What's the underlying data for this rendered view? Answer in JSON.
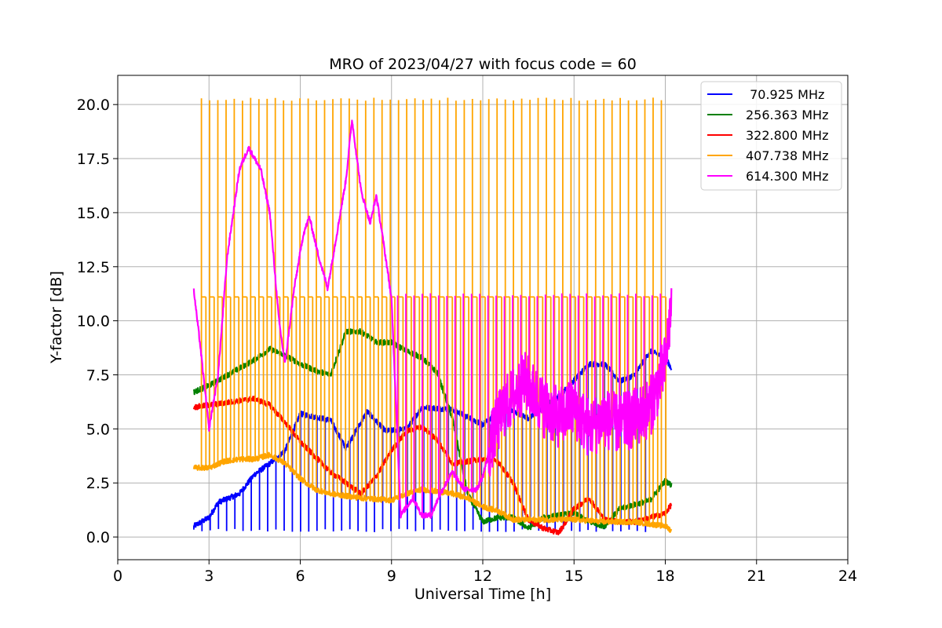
{
  "chart_data": {
    "type": "line",
    "title": "MRO of 2023/04/27 with focus code = 60",
    "xlabel": "Universal Time [h]",
    "ylabel": "Y-factor [dB]",
    "xlim": [
      0,
      24
    ],
    "ylim": [
      -1.05,
      21.35
    ],
    "xticks": [
      0,
      3,
      6,
      9,
      12,
      15,
      18,
      21,
      24
    ],
    "xtick_labels": [
      "0",
      "3",
      "6",
      "9",
      "12",
      "15",
      "18",
      "21",
      "24"
    ],
    "yticks": [
      0,
      2.5,
      5,
      7.5,
      10,
      12.5,
      15,
      17.5,
      20
    ],
    "ytick_labels": [
      "0.0",
      "2.5",
      "5.0",
      "7.5",
      "10.0",
      "12.5",
      "15.0",
      "17.5",
      "20.0"
    ],
    "grid": true,
    "legend_position": "top-right",
    "spike_interval_h": 0.27,
    "series": [
      {
        "name": " 70.925 MHz",
        "color": "#0000ff",
        "base": [
          [
            2.5,
            0.5
          ],
          [
            3,
            0.9
          ],
          [
            3.3,
            1.6
          ],
          [
            4,
            2.0
          ],
          [
            4.5,
            2.9
          ],
          [
            5,
            3.4
          ],
          [
            5.5,
            4.0
          ],
          [
            6,
            5.7
          ],
          [
            7,
            5.4
          ],
          [
            7.5,
            4.1
          ],
          [
            8.2,
            5.8
          ],
          [
            8.8,
            4.9
          ],
          [
            9.5,
            5.0
          ],
          [
            10,
            6.0
          ],
          [
            11,
            5.9
          ],
          [
            12,
            5.2
          ],
          [
            12.7,
            6.0
          ],
          [
            13.5,
            5.5
          ],
          [
            14.5,
            6.5
          ],
          [
            15.5,
            8.0
          ],
          [
            16,
            8.0
          ],
          [
            16.5,
            7.2
          ],
          [
            17,
            7.5
          ],
          [
            17.5,
            8.6
          ],
          [
            18,
            8.3
          ],
          [
            18.2,
            7.8
          ]
        ],
        "spike_to": 0.3,
        "spike_range": [
          2.5,
          17.5
        ]
      },
      {
        "name": "256.363 MHz",
        "color": "#008000",
        "base": [
          [
            2.5,
            6.7
          ],
          [
            3,
            7.0
          ],
          [
            3.5,
            7.4
          ],
          [
            4,
            7.8
          ],
          [
            4.5,
            8.2
          ],
          [
            5,
            8.7
          ],
          [
            5.5,
            8.4
          ],
          [
            6,
            8.0
          ],
          [
            6.5,
            7.7
          ],
          [
            7,
            7.5
          ],
          [
            7.5,
            9.5
          ],
          [
            8,
            9.5
          ],
          [
            8.5,
            9.0
          ],
          [
            9,
            9.0
          ],
          [
            9.5,
            8.6
          ],
          [
            10,
            8.3
          ],
          [
            10.5,
            7.6
          ],
          [
            11,
            5.5
          ],
          [
            11.5,
            2.0
          ],
          [
            12,
            0.7
          ],
          [
            12.5,
            0.9
          ],
          [
            13,
            0.9
          ],
          [
            13.5,
            0.4
          ],
          [
            14,
            0.9
          ],
          [
            14.5,
            1.0
          ],
          [
            15,
            1.1
          ],
          [
            15.5,
            0.7
          ],
          [
            16,
            0.5
          ],
          [
            16.5,
            1.3
          ],
          [
            17,
            1.5
          ],
          [
            17.5,
            1.7
          ],
          [
            18,
            2.6
          ],
          [
            18.2,
            2.4
          ]
        ]
      },
      {
        "name": "322.800 MHz",
        "color": "#ff0000",
        "base": [
          [
            2.5,
            6.0
          ],
          [
            3,
            6.1
          ],
          [
            4,
            6.3
          ],
          [
            4.5,
            6.4
          ],
          [
            5,
            6.1
          ],
          [
            5.5,
            5.3
          ],
          [
            6,
            4.4
          ],
          [
            6.5,
            3.7
          ],
          [
            7,
            3.0
          ],
          [
            7.5,
            2.5
          ],
          [
            8,
            2.0
          ],
          [
            8.5,
            2.8
          ],
          [
            9,
            4.0
          ],
          [
            9.5,
            4.9
          ],
          [
            10,
            5.1
          ],
          [
            10.5,
            4.5
          ],
          [
            11,
            3.4
          ],
          [
            11.5,
            3.5
          ],
          [
            12,
            3.6
          ],
          [
            12.5,
            3.5
          ],
          [
            13,
            2.5
          ],
          [
            13.5,
            0.8
          ],
          [
            14,
            0.4
          ],
          [
            14.5,
            0.2
          ],
          [
            15,
            1.3
          ],
          [
            15.5,
            1.8
          ],
          [
            16,
            0.8
          ],
          [
            16.5,
            0.7
          ],
          [
            17,
            0.7
          ],
          [
            17.5,
            0.9
          ],
          [
            18,
            1.1
          ],
          [
            18.2,
            1.5
          ]
        ]
      },
      {
        "name": "407.738 MHz",
        "color": "#ffa500",
        "base": [
          [
            2.5,
            3.2
          ],
          [
            3,
            3.2
          ],
          [
            3.5,
            3.5
          ],
          [
            4,
            3.6
          ],
          [
            4.5,
            3.6
          ],
          [
            5,
            3.8
          ],
          [
            5.5,
            3.4
          ],
          [
            6,
            2.7
          ],
          [
            6.5,
            2.2
          ],
          [
            7,
            2.0
          ],
          [
            8,
            1.8
          ],
          [
            9,
            1.7
          ],
          [
            9.5,
            2.0
          ],
          [
            10,
            2.2
          ],
          [
            11,
            2.0
          ],
          [
            11.5,
            1.8
          ],
          [
            12,
            1.4
          ],
          [
            12.5,
            1.2
          ],
          [
            13,
            0.8
          ],
          [
            14,
            0.8
          ],
          [
            15,
            0.8
          ],
          [
            16,
            0.7
          ],
          [
            17,
            0.7
          ],
          [
            18,
            0.5
          ],
          [
            18.2,
            0.3
          ]
        ],
        "spike_to": 20.25,
        "spike_range": [
          2.75,
          17.95
        ],
        "mid_band": 11.1
      },
      {
        "name": "614.300 MHz",
        "color": "#ff00ff",
        "base": [
          [
            2.5,
            11.4
          ],
          [
            2.7,
            9.0
          ],
          [
            3,
            5.0
          ],
          [
            3.3,
            7.5
          ],
          [
            3.6,
            13.0
          ],
          [
            4,
            17.0
          ],
          [
            4.3,
            18.0
          ],
          [
            4.7,
            17.0
          ],
          [
            5,
            15.0
          ],
          [
            5.3,
            10.0
          ],
          [
            5.5,
            8.0
          ],
          [
            5.8,
            11.5
          ],
          [
            6.1,
            14.0
          ],
          [
            6.3,
            14.8
          ],
          [
            6.6,
            13.0
          ],
          [
            6.9,
            11.5
          ],
          [
            7.2,
            14.0
          ],
          [
            7.5,
            16.5
          ],
          [
            7.7,
            19.3
          ],
          [
            8,
            16.0
          ],
          [
            8.3,
            14.5
          ],
          [
            8.5,
            15.8
          ],
          [
            8.8,
            13.0
          ],
          [
            9,
            11.0
          ],
          [
            9.3,
            1.0
          ],
          [
            9.7,
            1.8
          ],
          [
            10,
            1.0
          ],
          [
            10.3,
            1.0
          ],
          [
            10.6,
            2.0
          ],
          [
            11,
            3.0
          ],
          [
            11.4,
            2.2
          ],
          [
            11.8,
            2.2
          ],
          [
            12,
            2.8
          ],
          [
            12.3,
            4.5
          ],
          [
            12.7,
            6.0
          ],
          [
            13,
            6.5
          ],
          [
            13.4,
            7.2
          ],
          [
            14,
            6.0
          ],
          [
            14.5,
            5.5
          ],
          [
            15,
            6.0
          ],
          [
            15.5,
            5.0
          ],
          [
            16,
            5.5
          ],
          [
            16.5,
            5.2
          ],
          [
            17,
            5.5
          ],
          [
            17.5,
            6.0
          ],
          [
            18,
            8.0
          ],
          [
            18.2,
            10.8
          ]
        ],
        "noisy_after": 12.2,
        "spike_to": 11.2,
        "spike_range": [
          9.2,
          18.05
        ]
      }
    ]
  }
}
